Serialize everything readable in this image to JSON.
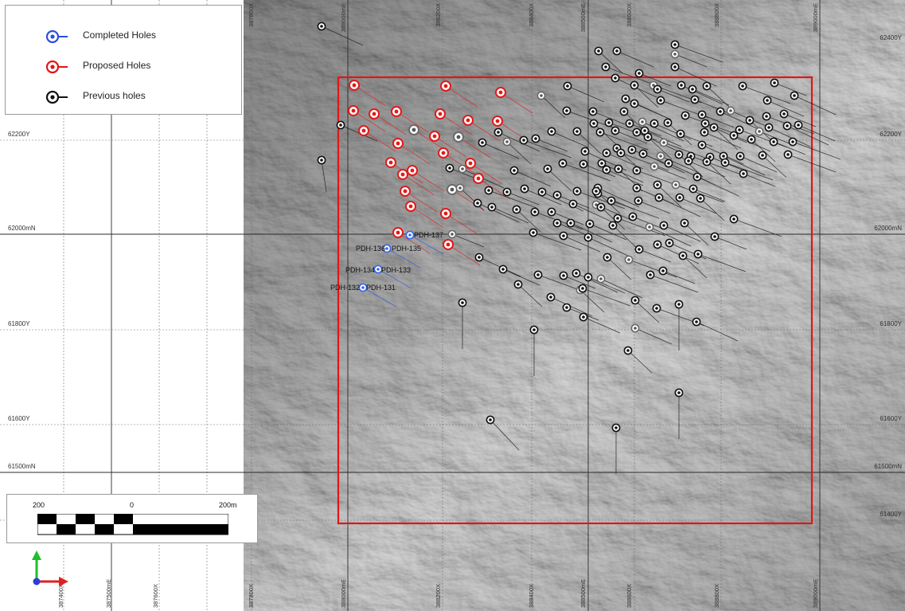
{
  "legend": {
    "items": [
      {
        "label": "Completed Holes",
        "color": "#2b4fe0"
      },
      {
        "label": "Proposed Holes",
        "color": "#e01616"
      },
      {
        "label": "Previous holes",
        "color": "#111111"
      }
    ]
  },
  "colors": {
    "completed": "#3a66e8",
    "proposed": "#e01a1a",
    "previous": "#111111",
    "boundary": "#e01616"
  },
  "grid": {
    "northing_left": [
      "62200Y",
      "62000mN",
      "61800Y",
      "61600Y",
      "61500mN"
    ],
    "northing_right": [
      "62400Y",
      "62200Y",
      "62000mN",
      "61800Y",
      "61600Y",
      "61500mN",
      "61400Y"
    ],
    "easting_top": [
      "387800X",
      "388000mE",
      "388200X",
      "388400X",
      "388500mE",
      "388600X",
      "388800X",
      "389000mE"
    ],
    "easting_bottom": [
      "387400X",
      "387500mE",
      "387600X",
      "387800X",
      "388000mE",
      "388200X",
      "388400X",
      "388500mE",
      "388600X",
      "388800X",
      "389000mE"
    ]
  },
  "hole_labels": [
    "PDH-137",
    "PDH-136",
    "PDH-135",
    "PDH-134",
    "PDH-133",
    "PDH-132",
    "PDH-131"
  ],
  "scale_bar": {
    "left": "200",
    "mid": "0",
    "right": "200m"
  },
  "north_arrow": {
    "icon": "axis-triad-icon"
  }
}
